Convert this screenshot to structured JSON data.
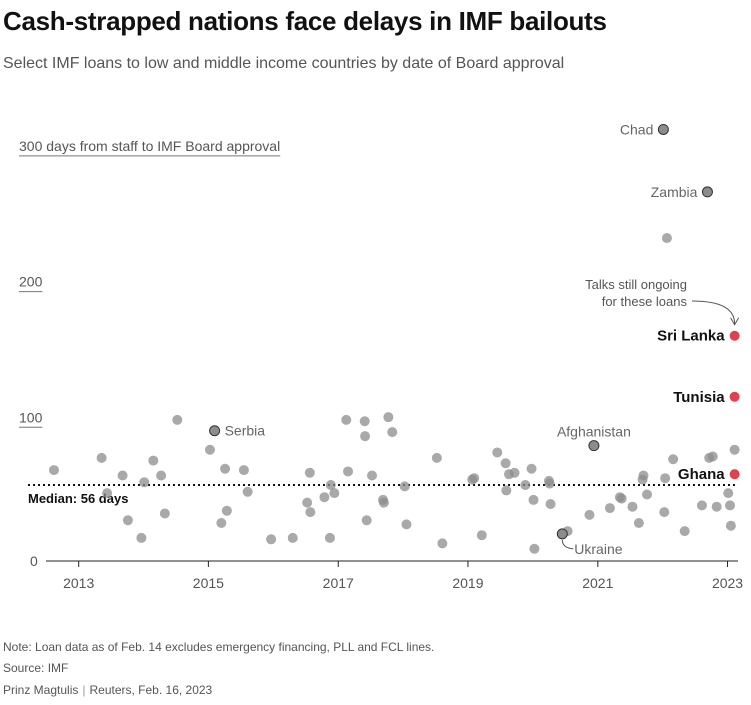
{
  "header": {
    "title": "Cash-strapped nations face delays in IMF bailouts",
    "subtitle": "Select IMF loans to low and middle income countries by date of Board approval"
  },
  "footer": {
    "note": "Note: Loan data as of Feb. 14 excludes emergency financing, PLL and FCL lines.",
    "source": "Source: IMF",
    "author": "Prinz Magtulis",
    "credit": "Reuters, Feb. 16, 2023"
  },
  "colors": {
    "dot_gray": "#8c8c8c",
    "dot_red": "#e0414f",
    "text_dark": "#111111",
    "text_gray": "#666666"
  },
  "chart_data": {
    "type": "scatter",
    "xlabel": "",
    "ylabel": "300 days from staff to IMF Board approval",
    "xlim": [
      "2012-07-01",
      "2023-03-01"
    ],
    "ylim": [
      0,
      300
    ],
    "x_ticks": [
      "2013",
      "2015",
      "2017",
      "2019",
      "2021",
      "2023"
    ],
    "y_ticks": [
      {
        "value": 0,
        "label": "0"
      },
      {
        "value": 100,
        "label": "100"
      },
      {
        "value": 200,
        "label": "200"
      },
      {
        "value": 300,
        "label": "300 days from staff to IMF Board approval"
      }
    ],
    "median": {
      "value": 56,
      "label": "Median: 56 days"
    },
    "annotation": {
      "text_line1": "Talks still ongoing",
      "text_line2": "for these loans"
    },
    "points": [
      {
        "x": "2012-08-15",
        "y": 67
      },
      {
        "x": "2013-05-10",
        "y": 76
      },
      {
        "x": "2013-06-10",
        "y": 50
      },
      {
        "x": "2013-09-05",
        "y": 63
      },
      {
        "x": "2013-10-05",
        "y": 30
      },
      {
        "x": "2013-12-20",
        "y": 17
      },
      {
        "x": "2014-01-05",
        "y": 58
      },
      {
        "x": "2014-02-25",
        "y": 74
      },
      {
        "x": "2014-04-10",
        "y": 63
      },
      {
        "x": "2014-05-01",
        "y": 35
      },
      {
        "x": "2014-07-10",
        "y": 104
      },
      {
        "x": "2015-01-10",
        "y": 82
      },
      {
        "x": "2015-03-15",
        "y": 28
      },
      {
        "x": "2015-04-05",
        "y": 68
      },
      {
        "x": "2015-04-15",
        "y": 37
      },
      {
        "x": "2015-07-20",
        "y": 67
      },
      {
        "x": "2015-08-10",
        "y": 51
      },
      {
        "x": "2015-12-20",
        "y": 16
      },
      {
        "x": "2016-04-20",
        "y": 17
      },
      {
        "x": "2016-07-10",
        "y": 43
      },
      {
        "x": "2016-07-25",
        "y": 65
      },
      {
        "x": "2016-07-28",
        "y": 36
      },
      {
        "x": "2016-10-15",
        "y": 47
      },
      {
        "x": "2016-11-15",
        "y": 17
      },
      {
        "x": "2016-11-20",
        "y": 56
      },
      {
        "x": "2016-12-10",
        "y": 50
      },
      {
        "x": "2017-02-15",
        "y": 104
      },
      {
        "x": "2017-02-25",
        "y": 66
      },
      {
        "x": "2017-05-30",
        "y": 103
      },
      {
        "x": "2017-06-01",
        "y": 92
      },
      {
        "x": "2017-06-10",
        "y": 30
      },
      {
        "x": "2017-07-10",
        "y": 63
      },
      {
        "x": "2017-09-10",
        "y": 45
      },
      {
        "x": "2017-09-15",
        "y": 43
      },
      {
        "x": "2017-10-10",
        "y": 106
      },
      {
        "x": "2017-11-01",
        "y": 95
      },
      {
        "x": "2018-01-10",
        "y": 55
      },
      {
        "x": "2018-01-20",
        "y": 27
      },
      {
        "x": "2018-07-10",
        "y": 76
      },
      {
        "x": "2018-08-10",
        "y": 13
      },
      {
        "x": "2019-01-25",
        "y": 60
      },
      {
        "x": "2019-02-05",
        "y": 61
      },
      {
        "x": "2019-03-20",
        "y": 19
      },
      {
        "x": "2019-06-15",
        "y": 80
      },
      {
        "x": "2019-08-01",
        "y": 72
      },
      {
        "x": "2019-08-05",
        "y": 52
      },
      {
        "x": "2019-08-20",
        "y": 64
      },
      {
        "x": "2019-09-20",
        "y": 65
      },
      {
        "x": "2019-11-20",
        "y": 56
      },
      {
        "x": "2019-12-25",
        "y": 68
      },
      {
        "x": "2020-01-05",
        "y": 45
      },
      {
        "x": "2020-01-10",
        "y": 9
      },
      {
        "x": "2020-04-01",
        "y": 59
      },
      {
        "x": "2020-04-05",
        "y": 57
      },
      {
        "x": "2020-04-10",
        "y": 42
      },
      {
        "x": "2020-07-15",
        "y": 22
      },
      {
        "x": "2020-11-15",
        "y": 34
      },
      {
        "x": "2021-03-10",
        "y": 39
      },
      {
        "x": "2021-05-05",
        "y": 47
      },
      {
        "x": "2021-05-15",
        "y": 46
      },
      {
        "x": "2021-07-15",
        "y": 40
      },
      {
        "x": "2021-08-20",
        "y": 28
      },
      {
        "x": "2021-09-10",
        "y": 60
      },
      {
        "x": "2021-09-15",
        "y": 63
      },
      {
        "x": "2021-10-05",
        "y": 49
      },
      {
        "x": "2022-01-10",
        "y": 36
      },
      {
        "x": "2022-01-15",
        "y": 61
      },
      {
        "x": "2022-03-01",
        "y": 75
      },
      {
        "x": "2022-05-05",
        "y": 22
      },
      {
        "x": "2022-08-10",
        "y": 41
      },
      {
        "x": "2022-09-20",
        "y": 76
      },
      {
        "x": "2022-10-10",
        "y": 77
      },
      {
        "x": "2022-11-01",
        "y": 40
      },
      {
        "x": "2023-01-05",
        "y": 50
      },
      {
        "x": "2023-01-15",
        "y": 41
      },
      {
        "x": "2023-01-20",
        "y": 26
      },
      {
        "x": "2023-02-10",
        "y": 82
      },
      {
        "x": "2022-01-25",
        "y": 238
      },
      {
        "x": "2015-02-05",
        "y": 96,
        "label": "Serbia",
        "highlight": "gray"
      },
      {
        "x": "2022-01-05",
        "y": 318,
        "label": "Chad",
        "highlight": "gray"
      },
      {
        "x": "2022-09-10",
        "y": 272,
        "label": "Zambia",
        "highlight": "gray"
      },
      {
        "x": "2020-12-10",
        "y": 85,
        "label": "Afghanistan",
        "highlight": "gray"
      },
      {
        "x": "2020-06-15",
        "y": 20,
        "label": "Ukraine",
        "highlight": "gray"
      },
      {
        "x": "2023-02-10",
        "y": 166,
        "label": "Sri Lanka",
        "highlight": "red"
      },
      {
        "x": "2023-02-10",
        "y": 121,
        "label": "Tunisia",
        "highlight": "red"
      },
      {
        "x": "2023-02-10",
        "y": 64,
        "label": "Ghana",
        "highlight": "red"
      }
    ]
  }
}
